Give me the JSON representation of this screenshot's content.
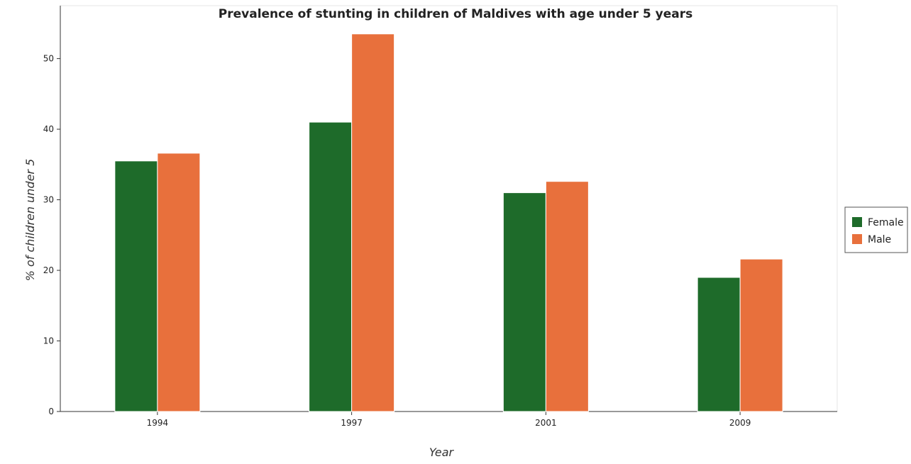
{
  "chart_data": {
    "type": "bar",
    "title": "Prevalence of stunting in children of Maldives with age under 5 years",
    "xlabel": "Year",
    "ylabel": "% of children under 5",
    "categories": [
      "1994",
      "1997",
      "2001",
      "2009"
    ],
    "series": [
      {
        "name": "Female",
        "values": [
          35.5,
          41.0,
          31.0,
          19.0
        ],
        "color": "#1e6b2a"
      },
      {
        "name": "Male",
        "values": [
          36.6,
          53.5,
          32.6,
          21.6
        ],
        "color": "#e8703c"
      }
    ],
    "ylim": [
      0,
      57.5
    ],
    "yticks": [
      0,
      10,
      20,
      30,
      40,
      50
    ],
    "grid": false,
    "legend_position": "right"
  }
}
